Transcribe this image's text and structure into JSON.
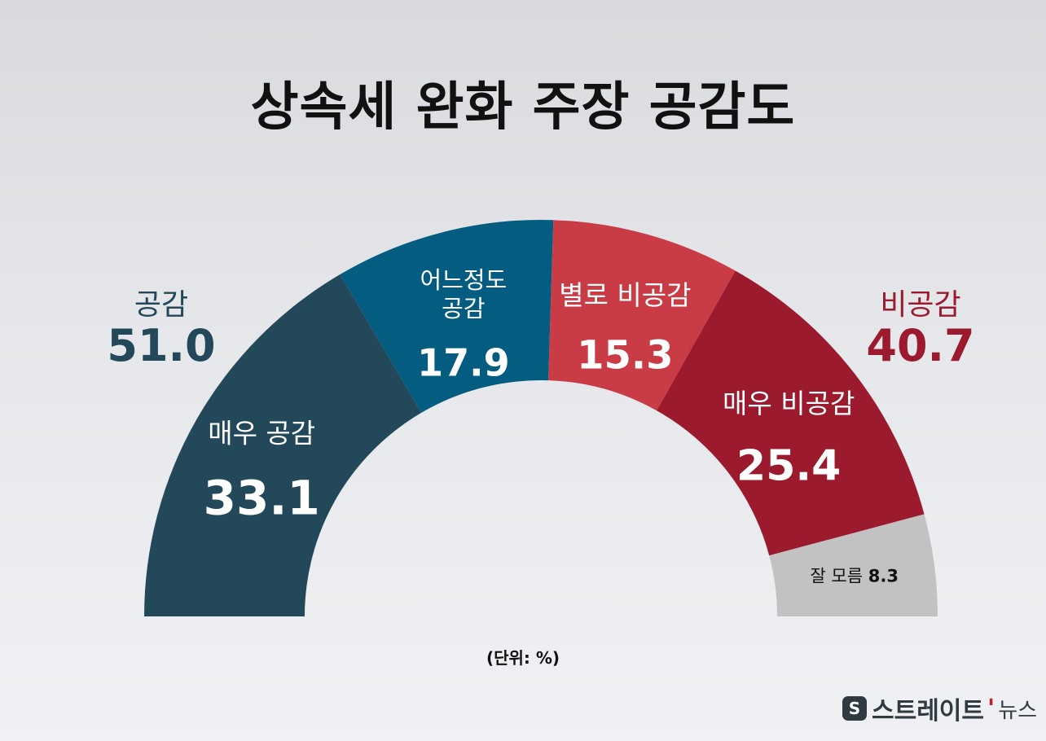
{
  "title": "상속세 완화 주장 공감도",
  "unit_note": "(단위: %)",
  "logo": {
    "mark": "S",
    "main": "스트레이트",
    "accent": "'",
    "sub": "뉴스"
  },
  "groups": {
    "agree": {
      "name": "공감",
      "value": "51.0",
      "color": "#22485a"
    },
    "disagree": {
      "name": "비공감",
      "value": "40.7",
      "color": "#9b1a2d"
    }
  },
  "chart_data": {
    "type": "pie",
    "layout": "semicircle-donut",
    "title": "상속세 완화 주장 공감도",
    "unit": "%",
    "categories": [
      "매우 공감",
      "어느정도 공감",
      "별로 비공감",
      "매우 비공감",
      "잘 모름"
    ],
    "values": [
      33.1,
      17.9,
      15.3,
      25.4,
      8.3
    ],
    "colors": [
      "#22485a",
      "#045c80",
      "#c93c45",
      "#9b1a2d",
      "#c2c2c2"
    ],
    "labels": [
      {
        "lines": [
          "매우 공감"
        ],
        "value": "33.1"
      },
      {
        "lines": [
          "어느정도",
          "공감"
        ],
        "value": "17.9"
      },
      {
        "lines": [
          "별로 비공감"
        ],
        "value": "15.3"
      },
      {
        "lines": [
          "매우 비공감"
        ],
        "value": "25.4"
      },
      {
        "lines": [
          "잘 모름"
        ],
        "value": "8.3"
      }
    ],
    "groups": [
      {
        "name": "공감",
        "value": 51.0,
        "segments": [
          "매우 공감",
          "어느정도 공감"
        ]
      },
      {
        "name": "비공감",
        "value": 40.7,
        "segments": [
          "별로 비공감",
          "매우 비공감"
        ]
      }
    ]
  }
}
